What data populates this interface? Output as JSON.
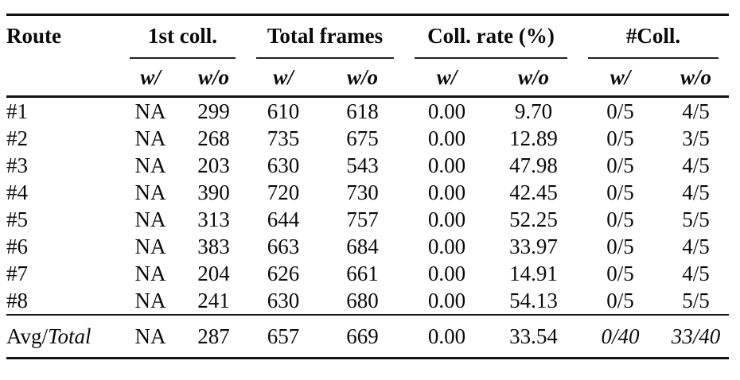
{
  "table": {
    "columns": {
      "route_label": "Route",
      "groups": [
        {
          "label": "1st coll."
        },
        {
          "label": "Total frames"
        },
        {
          "label": "Coll. rate (%)"
        },
        {
          "label": "#Coll."
        }
      ],
      "sub_with": "w/",
      "sub_without": "w/o"
    },
    "rows": [
      {
        "route": "#1",
        "first_coll": {
          "w": "NA",
          "wo": "299"
        },
        "total_frames": {
          "w": "610",
          "wo": "618"
        },
        "coll_rate": {
          "w": "0.00",
          "wo": "9.70"
        },
        "num_coll": {
          "w": "0/5",
          "wo": "4/5"
        }
      },
      {
        "route": "#2",
        "first_coll": {
          "w": "NA",
          "wo": "268"
        },
        "total_frames": {
          "w": "735",
          "wo": "675"
        },
        "coll_rate": {
          "w": "0.00",
          "wo": "12.89"
        },
        "num_coll": {
          "w": "0/5",
          "wo": "3/5"
        }
      },
      {
        "route": "#3",
        "first_coll": {
          "w": "NA",
          "wo": "203"
        },
        "total_frames": {
          "w": "630",
          "wo": "543"
        },
        "coll_rate": {
          "w": "0.00",
          "wo": "47.98"
        },
        "num_coll": {
          "w": "0/5",
          "wo": "4/5"
        }
      },
      {
        "route": "#4",
        "first_coll": {
          "w": "NA",
          "wo": "390"
        },
        "total_frames": {
          "w": "720",
          "wo": "730"
        },
        "coll_rate": {
          "w": "0.00",
          "wo": "42.45"
        },
        "num_coll": {
          "w": "0/5",
          "wo": "4/5"
        }
      },
      {
        "route": "#5",
        "first_coll": {
          "w": "NA",
          "wo": "313"
        },
        "total_frames": {
          "w": "644",
          "wo": "757"
        },
        "coll_rate": {
          "w": "0.00",
          "wo": "52.25"
        },
        "num_coll": {
          "w": "0/5",
          "wo": "5/5"
        }
      },
      {
        "route": "#6",
        "first_coll": {
          "w": "NA",
          "wo": "383"
        },
        "total_frames": {
          "w": "663",
          "wo": "684"
        },
        "coll_rate": {
          "w": "0.00",
          "wo": "33.97"
        },
        "num_coll": {
          "w": "0/5",
          "wo": "4/5"
        }
      },
      {
        "route": "#7",
        "first_coll": {
          "w": "NA",
          "wo": "204"
        },
        "total_frames": {
          "w": "626",
          "wo": "661"
        },
        "coll_rate": {
          "w": "0.00",
          "wo": "14.91"
        },
        "num_coll": {
          "w": "0/5",
          "wo": "4/5"
        }
      },
      {
        "route": "#8",
        "first_coll": {
          "w": "NA",
          "wo": "241"
        },
        "total_frames": {
          "w": "630",
          "wo": "680"
        },
        "coll_rate": {
          "w": "0.00",
          "wo": "54.13"
        },
        "num_coll": {
          "w": "0/5",
          "wo": "5/5"
        }
      }
    ],
    "summary": {
      "route_plain": "Avg/",
      "route_italic": "Total",
      "first_coll": {
        "w": "NA",
        "wo": "287"
      },
      "total_frames": {
        "w": "657",
        "wo": "669"
      },
      "coll_rate": {
        "w": "0.00",
        "wo": "33.54"
      },
      "num_coll": {
        "w": "0/40",
        "wo": "33/40"
      }
    }
  },
  "colors": {
    "text": "#0a0a0a",
    "rule": "#111111",
    "background": "#ffffff"
  }
}
